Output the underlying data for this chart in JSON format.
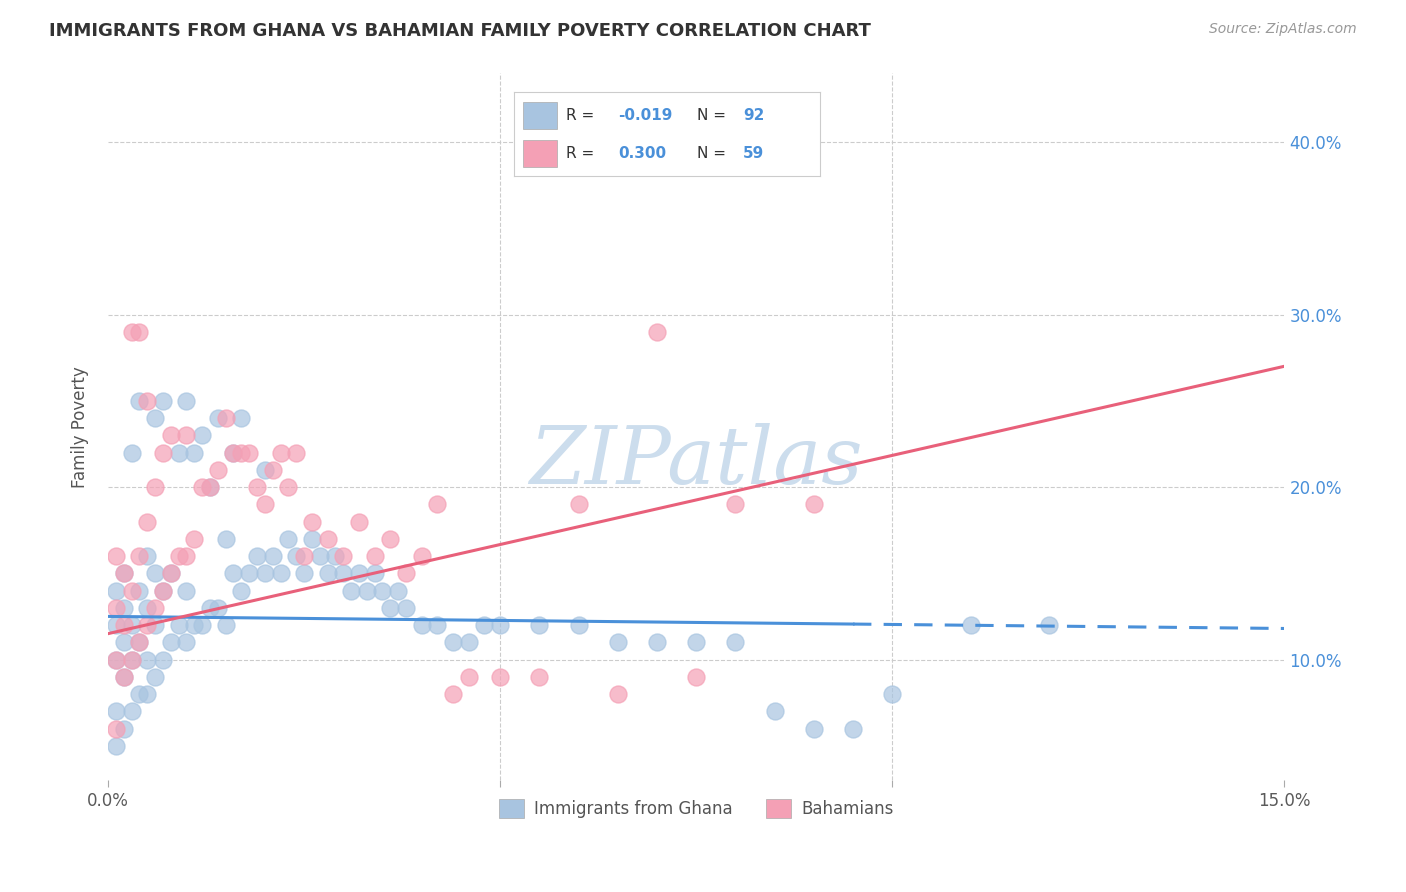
{
  "title": "IMMIGRANTS FROM GHANA VS BAHAMIAN FAMILY POVERTY CORRELATION CHART",
  "source": "Source: ZipAtlas.com",
  "ylabel": "Family Poverty",
  "ytick_labels": [
    "10.0%",
    "20.0%",
    "30.0%",
    "40.0%"
  ],
  "ytick_values": [
    0.1,
    0.2,
    0.3,
    0.4
  ],
  "xlim": [
    0.0,
    0.15
  ],
  "ylim": [
    0.03,
    0.44
  ],
  "legend_label1": "Immigrants from Ghana",
  "legend_label2": "Bahamians",
  "R1": -0.019,
  "N1": 92,
  "R2": 0.3,
  "N2": 59,
  "scatter1_color": "#a8c4e0",
  "scatter2_color": "#f4a0b5",
  "line1_color": "#4a90d9",
  "line2_color": "#e8607a",
  "watermark": "ZIPatlas",
  "watermark_color": "#ccdded",
  "background_color": "#ffffff",
  "line1_y0": 0.125,
  "line1_y1": 0.118,
  "line2_y0": 0.115,
  "line2_y1": 0.27,
  "scatter1_x": [
    0.001,
    0.001,
    0.001,
    0.001,
    0.001,
    0.002,
    0.002,
    0.002,
    0.002,
    0.002,
    0.003,
    0.003,
    0.003,
    0.003,
    0.004,
    0.004,
    0.004,
    0.004,
    0.005,
    0.005,
    0.005,
    0.005,
    0.006,
    0.006,
    0.006,
    0.006,
    0.007,
    0.007,
    0.007,
    0.008,
    0.008,
    0.009,
    0.009,
    0.01,
    0.01,
    0.01,
    0.011,
    0.011,
    0.012,
    0.012,
    0.013,
    0.013,
    0.014,
    0.014,
    0.015,
    0.015,
    0.016,
    0.016,
    0.017,
    0.017,
    0.018,
    0.019,
    0.02,
    0.02,
    0.021,
    0.022,
    0.023,
    0.024,
    0.025,
    0.026,
    0.027,
    0.028,
    0.029,
    0.03,
    0.031,
    0.032,
    0.033,
    0.034,
    0.035,
    0.036,
    0.037,
    0.038,
    0.04,
    0.042,
    0.044,
    0.046,
    0.048,
    0.05,
    0.055,
    0.06,
    0.065,
    0.07,
    0.075,
    0.08,
    0.085,
    0.09,
    0.095,
    0.1,
    0.11,
    0.12
  ],
  "scatter1_y": [
    0.05,
    0.07,
    0.1,
    0.12,
    0.14,
    0.06,
    0.09,
    0.11,
    0.13,
    0.15,
    0.07,
    0.1,
    0.12,
    0.22,
    0.08,
    0.11,
    0.14,
    0.25,
    0.08,
    0.1,
    0.13,
    0.16,
    0.09,
    0.12,
    0.15,
    0.24,
    0.1,
    0.14,
    0.25,
    0.11,
    0.15,
    0.12,
    0.22,
    0.11,
    0.14,
    0.25,
    0.12,
    0.22,
    0.12,
    0.23,
    0.13,
    0.2,
    0.13,
    0.24,
    0.12,
    0.17,
    0.15,
    0.22,
    0.14,
    0.24,
    0.15,
    0.16,
    0.15,
    0.21,
    0.16,
    0.15,
    0.17,
    0.16,
    0.15,
    0.17,
    0.16,
    0.15,
    0.16,
    0.15,
    0.14,
    0.15,
    0.14,
    0.15,
    0.14,
    0.13,
    0.14,
    0.13,
    0.12,
    0.12,
    0.11,
    0.11,
    0.12,
    0.12,
    0.12,
    0.12,
    0.11,
    0.11,
    0.11,
    0.11,
    0.07,
    0.06,
    0.06,
    0.08,
    0.12,
    0.12
  ],
  "scatter2_x": [
    0.001,
    0.001,
    0.001,
    0.001,
    0.002,
    0.002,
    0.002,
    0.003,
    0.003,
    0.003,
    0.004,
    0.004,
    0.004,
    0.005,
    0.005,
    0.005,
    0.006,
    0.006,
    0.007,
    0.007,
    0.008,
    0.008,
    0.009,
    0.01,
    0.01,
    0.011,
    0.012,
    0.013,
    0.014,
    0.015,
    0.016,
    0.017,
    0.018,
    0.019,
    0.02,
    0.021,
    0.022,
    0.023,
    0.024,
    0.025,
    0.026,
    0.028,
    0.03,
    0.032,
    0.034,
    0.036,
    0.038,
    0.04,
    0.042,
    0.044,
    0.046,
    0.05,
    0.055,
    0.06,
    0.065,
    0.07,
    0.075,
    0.08,
    0.09
  ],
  "scatter2_y": [
    0.06,
    0.1,
    0.13,
    0.16,
    0.09,
    0.12,
    0.15,
    0.1,
    0.14,
    0.29,
    0.11,
    0.16,
    0.29,
    0.12,
    0.18,
    0.25,
    0.13,
    0.2,
    0.14,
    0.22,
    0.15,
    0.23,
    0.16,
    0.16,
    0.23,
    0.17,
    0.2,
    0.2,
    0.21,
    0.24,
    0.22,
    0.22,
    0.22,
    0.2,
    0.19,
    0.21,
    0.22,
    0.2,
    0.22,
    0.16,
    0.18,
    0.17,
    0.16,
    0.18,
    0.16,
    0.17,
    0.15,
    0.16,
    0.19,
    0.08,
    0.09,
    0.09,
    0.09,
    0.19,
    0.08,
    0.29,
    0.09,
    0.19,
    0.19
  ]
}
